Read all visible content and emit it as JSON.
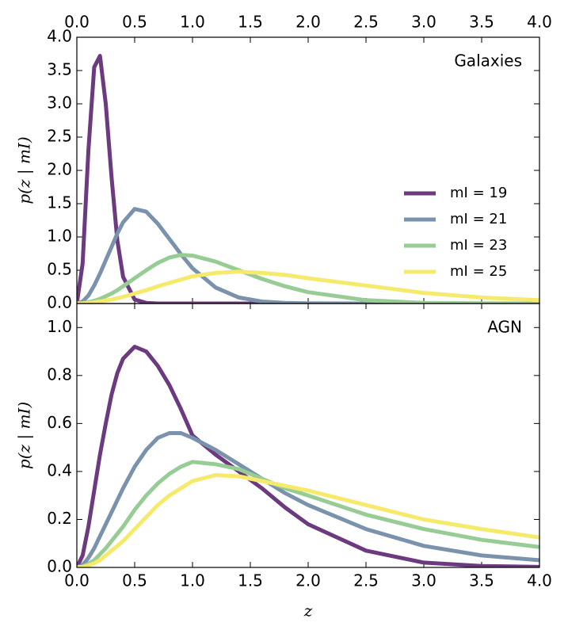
{
  "chart_data": [
    {
      "type": "line",
      "annotation": "Galaxies",
      "ylabel": "p(z | mI)",
      "xtick_position": "top",
      "legend": "center right",
      "x": [
        0,
        0.05,
        0.1,
        0.15,
        0.2,
        0.25,
        0.3,
        0.35,
        0.4,
        0.5,
        0.6,
        0.7,
        0.8,
        0.9,
        1.0,
        1.2,
        1.4,
        1.6,
        1.8,
        2.0,
        2.5,
        3.0,
        3.5,
        4.0
      ],
      "series": [
        {
          "name": "mI = 19",
          "color": "#6b3a7f",
          "values": [
            0,
            0.6,
            2.3,
            3.55,
            3.72,
            3.0,
            1.9,
            0.95,
            0.4,
            0.06,
            0.01,
            0,
            0,
            0,
            0,
            0,
            0,
            0,
            0,
            0,
            0,
            0,
            0,
            0
          ]
        },
        {
          "name": "mI = 21",
          "color": "#7b92ac",
          "values": [
            0,
            0.03,
            0.12,
            0.27,
            0.45,
            0.65,
            0.85,
            1.05,
            1.22,
            1.42,
            1.38,
            1.2,
            0.97,
            0.74,
            0.53,
            0.24,
            0.09,
            0.03,
            0.01,
            0.004,
            0,
            0,
            0,
            0
          ]
        },
        {
          "name": "mI = 23",
          "color": "#97cc94",
          "values": [
            0,
            0.005,
            0.02,
            0.04,
            0.07,
            0.11,
            0.15,
            0.2,
            0.26,
            0.38,
            0.5,
            0.61,
            0.69,
            0.73,
            0.72,
            0.63,
            0.5,
            0.37,
            0.26,
            0.17,
            0.05,
            0.01,
            0.003,
            0
          ]
        },
        {
          "name": "mI = 25",
          "color": "#f6ea6c",
          "values": [
            0,
            0.002,
            0.008,
            0.018,
            0.03,
            0.045,
            0.06,
            0.08,
            0.1,
            0.15,
            0.2,
            0.26,
            0.31,
            0.36,
            0.41,
            0.46,
            0.48,
            0.46,
            0.43,
            0.38,
            0.27,
            0.16,
            0.09,
            0.05
          ]
        }
      ],
      "xlim": [
        0,
        4.0
      ],
      "ylim": [
        0,
        4.0
      ],
      "xticks": [
        {
          "value": 0,
          "label": "0.0"
        },
        0.5,
        {
          "value": 1,
          "label": "1.0"
        },
        1.5,
        {
          "value": 2,
          "label": "2.0"
        },
        2.5,
        {
          "value": 3,
          "label": "3.0"
        },
        3.5,
        {
          "value": 4,
          "label": "4.0"
        }
      ],
      "yticks": [
        {
          "value": 0,
          "label": "0.0"
        },
        0.5,
        {
          "value": 1,
          "label": "1.0"
        },
        1.5,
        {
          "value": 2,
          "label": "2.0"
        },
        2.5,
        {
          "value": 3,
          "label": "3.0"
        },
        3.5,
        {
          "value": 4,
          "label": "4.0"
        }
      ]
    },
    {
      "type": "line",
      "annotation": "AGN",
      "ylabel": "p(z | mI)",
      "xlabel": "z",
      "xtick_position": "bottom",
      "x": [
        0,
        0.05,
        0.1,
        0.15,
        0.2,
        0.25,
        0.3,
        0.35,
        0.4,
        0.5,
        0.6,
        0.7,
        0.8,
        0.9,
        1.0,
        1.2,
        1.4,
        1.6,
        1.8,
        2.0,
        2.5,
        3.0,
        3.5,
        4.0
      ],
      "series": [
        {
          "color": "#6b3a7f",
          "values": [
            0,
            0.05,
            0.17,
            0.32,
            0.47,
            0.6,
            0.72,
            0.81,
            0.87,
            0.92,
            0.9,
            0.84,
            0.76,
            0.66,
            0.55,
            0.47,
            0.4,
            0.33,
            0.25,
            0.18,
            0.07,
            0.02,
            0.006,
            0.002
          ]
        },
        {
          "color": "#7b92ac",
          "values": [
            0,
            0.01,
            0.04,
            0.08,
            0.13,
            0.18,
            0.23,
            0.28,
            0.33,
            0.42,
            0.49,
            0.54,
            0.56,
            0.56,
            0.54,
            0.49,
            0.43,
            0.37,
            0.31,
            0.26,
            0.16,
            0.09,
            0.05,
            0.03
          ]
        },
        {
          "color": "#97cc94",
          "values": [
            0,
            0.004,
            0.015,
            0.03,
            0.055,
            0.08,
            0.11,
            0.14,
            0.17,
            0.24,
            0.3,
            0.35,
            0.39,
            0.42,
            0.44,
            0.43,
            0.41,
            0.37,
            0.33,
            0.3,
            0.22,
            0.16,
            0.115,
            0.085
          ]
        },
        {
          "color": "#f6ea6c",
          "values": [
            0,
            0.002,
            0.008,
            0.018,
            0.03,
            0.05,
            0.07,
            0.09,
            0.11,
            0.16,
            0.21,
            0.26,
            0.3,
            0.33,
            0.36,
            0.385,
            0.38,
            0.36,
            0.34,
            0.32,
            0.26,
            0.2,
            0.16,
            0.125
          ]
        }
      ],
      "xlim": [
        0,
        4.0
      ],
      "ylim": [
        0,
        1.1
      ],
      "xticks": [
        {
          "value": 0,
          "label": "0.0"
        },
        0.5,
        {
          "value": 1,
          "label": "1.0"
        },
        1.5,
        {
          "value": 2,
          "label": "2.0"
        },
        2.5,
        {
          "value": 3,
          "label": "3.0"
        },
        3.5,
        {
          "value": 4,
          "label": "4.0"
        }
      ],
      "yticks": [
        {
          "value": 0,
          "label": "0.0"
        },
        0.2,
        0.4,
        0.6,
        0.8,
        {
          "value": 1,
          "label": "1.0"
        }
      ]
    }
  ]
}
